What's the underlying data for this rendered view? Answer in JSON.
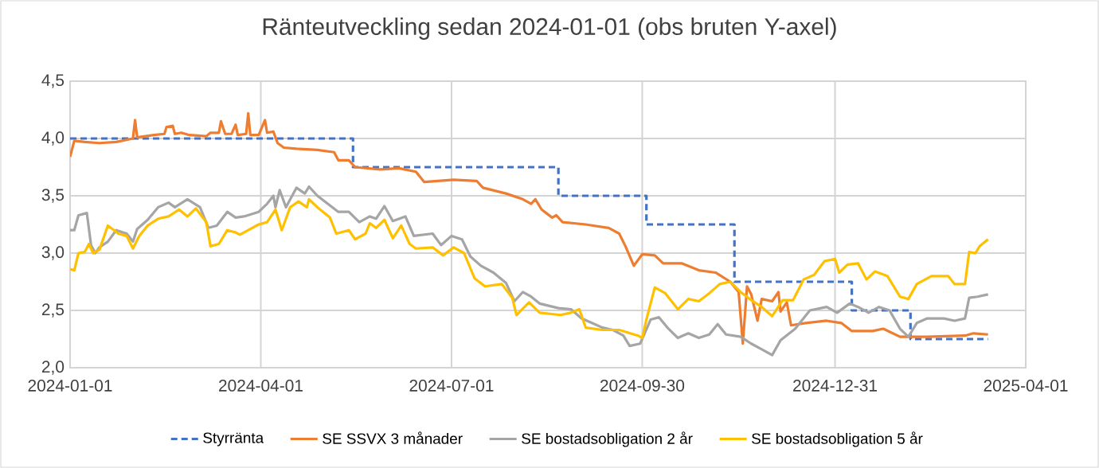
{
  "chart_data": {
    "type": "line",
    "title": "Ränteutveckling sedan 2024-01-01 (obs bruten Y-axel)",
    "xlim": [
      "2024-01-01",
      "2025-04-01"
    ],
    "xticks": [
      "2024-01-01",
      "2024-04-01",
      "2024-07-01",
      "2024-09-30",
      "2024-12-31",
      "2025-04-01"
    ],
    "ylim": [
      2.0,
      4.5
    ],
    "yticks": [
      {
        "value": 2.0,
        "label": "2,0"
      },
      {
        "value": 2.5,
        "label": "2,5"
      },
      {
        "value": 3.0,
        "label": "3,0"
      },
      {
        "value": 3.5,
        "label": "3,5"
      },
      {
        "value": 4.0,
        "label": "4,0"
      },
      {
        "value": 4.5,
        "label": "4,5"
      }
    ],
    "grid": true,
    "legend": "bottom",
    "series": [
      {
        "name": "Styrränta",
        "type": "step",
        "line_style": "dashed",
        "color": "#4472c4",
        "x": [
          "2024-01-01",
          "2024-05-15",
          "2024-08-21",
          "2024-10-02",
          "2024-11-13",
          "2025-01-08",
          "2025-02-05",
          "2025-03-14"
        ],
        "values": [
          4.0,
          3.75,
          3.5,
          3.25,
          2.75,
          2.5,
          2.25,
          2.25
        ]
      },
      {
        "name": "SE SSVX 3 månader",
        "color": "#ed7d31",
        "x": [
          "2024-01-01",
          "2024-01-03",
          "2024-01-08",
          "2024-01-15",
          "2024-01-23",
          "2024-01-31",
          "2024-02-01",
          "2024-02-02",
          "2024-02-10",
          "2024-02-15",
          "2024-02-16",
          "2024-02-19",
          "2024-02-20",
          "2024-02-23",
          "2024-02-27",
          "2024-03-06",
          "2024-03-08",
          "2024-03-12",
          "2024-03-13",
          "2024-03-15",
          "2024-03-18",
          "2024-03-20",
          "2024-03-21",
          "2024-03-25",
          "2024-03-26",
          "2024-03-27",
          "2024-03-31",
          "2024-04-03",
          "2024-04-04",
          "2024-04-07",
          "2024-04-09",
          "2024-04-12",
          "2024-04-18",
          "2024-04-28",
          "2024-05-06",
          "2024-05-08",
          "2024-05-13",
          "2024-05-16",
          "2024-05-28",
          "2024-06-06",
          "2024-06-14",
          "2024-06-18",
          "2024-07-02",
          "2024-07-13",
          "2024-07-16",
          "2024-07-27",
          "2024-08-04",
          "2024-08-08",
          "2024-08-10",
          "2024-08-13",
          "2024-08-18",
          "2024-08-20",
          "2024-08-23",
          "2024-09-03",
          "2024-09-14",
          "2024-09-19",
          "2024-09-22",
          "2024-09-26",
          "2024-09-30",
          "2024-10-06",
          "2024-10-10",
          "2024-10-19",
          "2024-10-27",
          "2024-11-04",
          "2024-11-11",
          "2024-11-15",
          "2024-11-17",
          "2024-11-19",
          "2024-11-21",
          "2024-11-24",
          "2024-11-26",
          "2024-12-01",
          "2024-12-04",
          "2024-12-05",
          "2024-12-08",
          "2024-12-10",
          "2024-12-17",
          "2024-12-27",
          "2025-01-03",
          "2025-01-08",
          "2025-01-18",
          "2025-01-23",
          "2025-01-31",
          "2025-02-13",
          "2025-03-03",
          "2025-03-07",
          "2025-03-14"
        ],
        "values": [
          3.84,
          3.98,
          3.97,
          3.96,
          3.97,
          4.0,
          4.16,
          4.01,
          4.03,
          4.04,
          4.1,
          4.11,
          4.04,
          4.05,
          4.03,
          4.02,
          4.05,
          4.05,
          4.15,
          4.04,
          4.04,
          4.12,
          4.03,
          4.04,
          4.22,
          4.03,
          4.03,
          4.16,
          4.05,
          4.06,
          3.96,
          3.92,
          3.91,
          3.9,
          3.88,
          3.81,
          3.81,
          3.75,
          3.73,
          3.74,
          3.71,
          3.62,
          3.64,
          3.63,
          3.57,
          3.52,
          3.47,
          3.43,
          3.47,
          3.38,
          3.31,
          3.33,
          3.27,
          3.25,
          3.22,
          3.17,
          3.06,
          2.89,
          2.99,
          2.98,
          2.91,
          2.91,
          2.85,
          2.83,
          2.75,
          2.66,
          2.21,
          2.71,
          2.64,
          2.41,
          2.6,
          2.58,
          2.66,
          2.49,
          2.57,
          2.37,
          2.39,
          2.41,
          2.39,
          2.32,
          2.32,
          2.34,
          2.27,
          2.27,
          2.28,
          2.3,
          2.29
        ]
      },
      {
        "name": "SE bostadsobligation 2 år",
        "color": "#a5a5a5",
        "x": [
          "2024-01-01",
          "2024-01-03",
          "2024-01-05",
          "2024-01-09",
          "2024-01-11",
          "2024-01-13",
          "2024-01-15",
          "2024-01-19",
          "2024-01-23",
          "2024-01-28",
          "2024-01-31",
          "2024-02-02",
          "2024-02-07",
          "2024-02-12",
          "2024-02-17",
          "2024-02-20",
          "2024-02-26",
          "2024-03-03",
          "2024-03-07",
          "2024-03-11",
          "2024-03-16",
          "2024-03-20",
          "2024-03-24",
          "2024-03-31",
          "2024-04-04",
          "2024-04-07",
          "2024-04-08",
          "2024-04-10",
          "2024-04-13",
          "2024-04-18",
          "2024-04-22",
          "2024-04-24",
          "2024-04-28",
          "2024-05-03",
          "2024-05-08",
          "2024-05-13",
          "2024-05-18",
          "2024-05-23",
          "2024-05-26",
          "2024-05-30",
          "2024-06-03",
          "2024-06-09",
          "2024-06-13",
          "2024-06-22",
          "2024-06-26",
          "2024-07-01",
          "2024-07-06",
          "2024-07-10",
          "2024-07-15",
          "2024-07-21",
          "2024-07-27",
          "2024-07-31",
          "2024-08-04",
          "2024-08-08",
          "2024-08-12",
          "2024-08-21",
          "2024-08-27",
          "2024-09-01",
          "2024-09-06",
          "2024-09-11",
          "2024-09-16",
          "2024-09-21",
          "2024-09-24",
          "2024-09-29",
          "2024-10-04",
          "2024-10-08",
          "2024-10-12",
          "2024-10-17",
          "2024-10-22",
          "2024-10-27",
          "2024-11-01",
          "2024-11-05",
          "2024-11-09",
          "2024-11-16",
          "2024-11-21",
          "2024-11-26",
          "2024-12-01",
          "2024-12-05",
          "2024-12-12",
          "2024-12-19",
          "2024-12-27",
          "2025-01-01",
          "2025-01-07",
          "2025-01-11",
          "2025-01-16",
          "2025-01-21",
          "2025-01-26",
          "2025-01-31",
          "2025-02-04",
          "2025-02-08",
          "2025-02-13",
          "2025-02-21",
          "2025-02-26",
          "2025-03-03",
          "2025-03-05",
          "2025-03-09",
          "2025-03-14"
        ],
        "values": [
          3.2,
          3.2,
          3.33,
          3.35,
          3.07,
          3.0,
          3.05,
          3.1,
          3.2,
          3.17,
          3.1,
          3.21,
          3.29,
          3.4,
          3.44,
          3.4,
          3.47,
          3.4,
          3.22,
          3.24,
          3.36,
          3.31,
          3.32,
          3.36,
          3.43,
          3.5,
          3.4,
          3.55,
          3.4,
          3.57,
          3.52,
          3.58,
          3.5,
          3.43,
          3.36,
          3.36,
          3.27,
          3.32,
          3.3,
          3.41,
          3.28,
          3.32,
          3.15,
          3.17,
          3.07,
          3.15,
          3.12,
          2.97,
          2.89,
          2.83,
          2.74,
          2.58,
          2.66,
          2.62,
          2.56,
          2.52,
          2.51,
          2.43,
          2.39,
          2.35,
          2.33,
          2.28,
          2.19,
          2.21,
          2.42,
          2.44,
          2.35,
          2.26,
          2.3,
          2.26,
          2.29,
          2.38,
          2.29,
          2.27,
          2.21,
          2.16,
          2.11,
          2.24,
          2.34,
          2.5,
          2.53,
          2.48,
          2.56,
          2.53,
          2.48,
          2.53,
          2.5,
          2.34,
          2.27,
          2.39,
          2.43,
          2.43,
          2.41,
          2.43,
          2.61,
          2.62,
          2.64
        ]
      },
      {
        "name": "SE bostadsobligation 5 år",
        "color": "#ffc000",
        "x": [
          "2024-01-01",
          "2024-01-03",
          "2024-01-05",
          "2024-01-08",
          "2024-01-10",
          "2024-01-12",
          "2024-01-15",
          "2024-01-19",
          "2024-01-22",
          "2024-01-24",
          "2024-01-28",
          "2024-01-31",
          "2024-02-03",
          "2024-02-07",
          "2024-02-12",
          "2024-02-17",
          "2024-02-22",
          "2024-02-26",
          "2024-03-01",
          "2024-03-06",
          "2024-03-08",
          "2024-03-12",
          "2024-03-16",
          "2024-03-20",
          "2024-03-22",
          "2024-03-26",
          "2024-03-31",
          "2024-04-04",
          "2024-04-08",
          "2024-04-11",
          "2024-04-15",
          "2024-04-19",
          "2024-04-23",
          "2024-04-24",
          "2024-04-28",
          "2024-05-04",
          "2024-05-07",
          "2024-05-13",
          "2024-05-16",
          "2024-05-21",
          "2024-05-23",
          "2024-05-26",
          "2024-05-30",
          "2024-06-03",
          "2024-06-07",
          "2024-06-11",
          "2024-06-14",
          "2024-06-22",
          "2024-06-27",
          "2024-07-02",
          "2024-07-07",
          "2024-07-12",
          "2024-07-17",
          "2024-07-25",
          "2024-07-30",
          "2024-08-01",
          "2024-08-07",
          "2024-08-12",
          "2024-08-22",
          "2024-08-27",
          "2024-08-31",
          "2024-09-03",
          "2024-09-11",
          "2024-09-19",
          "2024-09-28",
          "2024-09-30",
          "2024-10-02",
          "2024-10-06",
          "2024-10-11",
          "2024-10-17",
          "2024-10-22",
          "2024-10-27",
          "2024-11-01",
          "2024-11-06",
          "2024-11-11",
          "2024-11-16",
          "2024-11-21",
          "2024-11-26",
          "2024-12-01",
          "2024-12-06",
          "2024-12-11",
          "2024-12-16",
          "2024-12-21",
          "2024-12-26",
          "2024-12-31",
          "2025-01-02",
          "2025-01-06",
          "2025-01-11",
          "2025-01-15",
          "2025-01-19",
          "2025-01-25",
          "2025-01-31",
          "2025-02-04",
          "2025-02-08",
          "2025-02-15",
          "2025-02-23",
          "2025-02-26",
          "2025-03-03",
          "2025-03-05",
          "2025-03-08",
          "2025-03-10",
          "2025-03-14"
        ],
        "values": [
          2.86,
          2.85,
          3.0,
          3.01,
          3.08,
          3.0,
          3.03,
          3.24,
          3.2,
          3.17,
          3.15,
          3.04,
          3.15,
          3.24,
          3.3,
          3.32,
          3.38,
          3.32,
          3.39,
          3.27,
          3.06,
          3.08,
          3.2,
          3.18,
          3.16,
          3.2,
          3.25,
          3.27,
          3.38,
          3.2,
          3.4,
          3.45,
          3.4,
          3.47,
          3.4,
          3.31,
          3.17,
          3.2,
          3.12,
          3.17,
          3.26,
          3.22,
          3.29,
          3.13,
          3.24,
          3.08,
          3.04,
          3.05,
          2.98,
          3.05,
          3.0,
          2.78,
          2.71,
          2.73,
          2.61,
          2.46,
          2.57,
          2.48,
          2.46,
          2.48,
          2.51,
          2.35,
          2.33,
          2.33,
          2.28,
          2.26,
          2.42,
          2.7,
          2.65,
          2.51,
          2.6,
          2.58,
          2.65,
          2.73,
          2.75,
          2.66,
          2.59,
          2.53,
          2.45,
          2.59,
          2.59,
          2.77,
          2.81,
          2.93,
          2.95,
          2.83,
          2.9,
          2.91,
          2.77,
          2.84,
          2.8,
          2.62,
          2.6,
          2.73,
          2.8,
          2.8,
          2.73,
          2.73,
          3.01,
          3.0,
          3.06,
          3.12
        ]
      }
    ]
  }
}
